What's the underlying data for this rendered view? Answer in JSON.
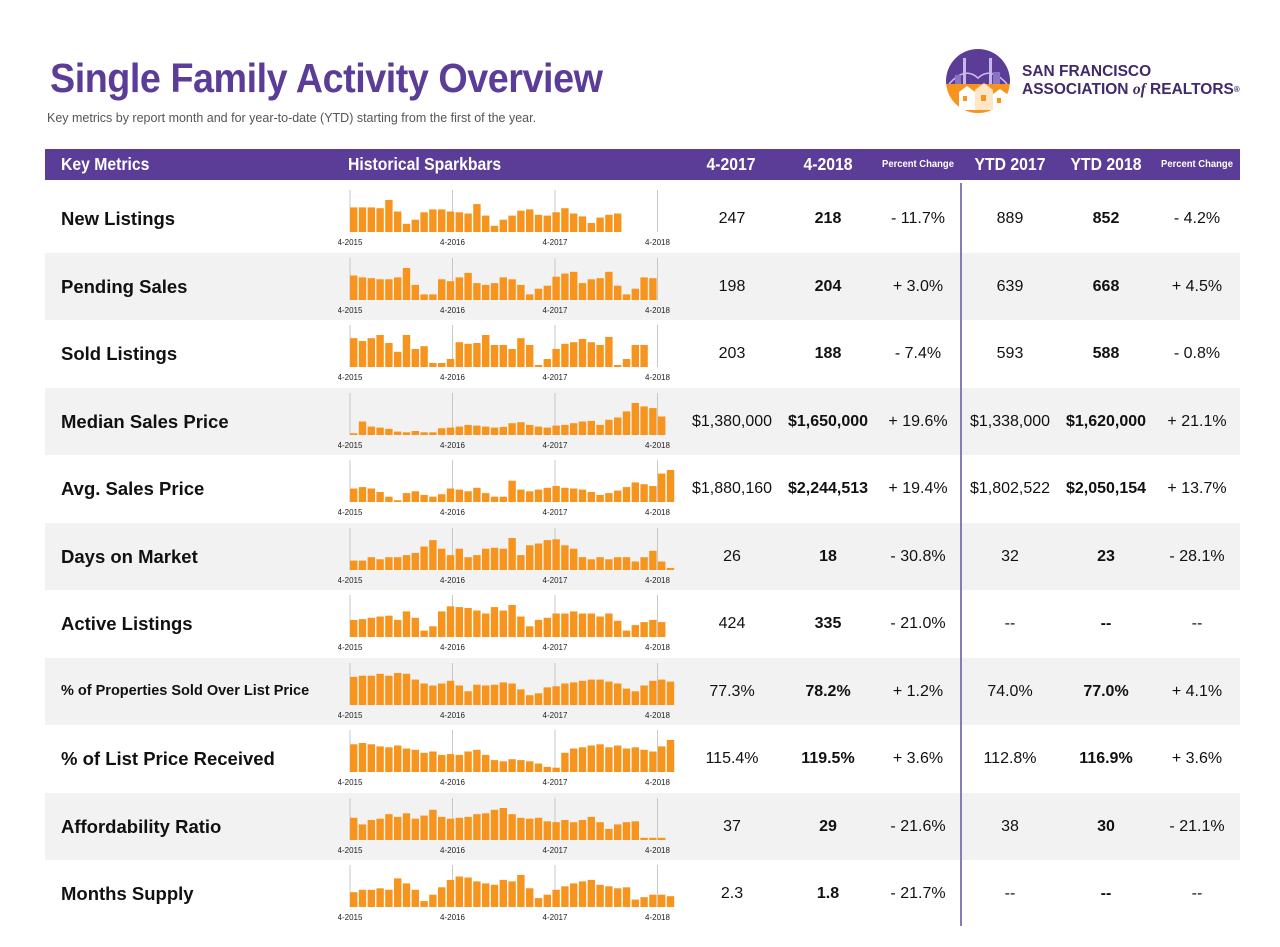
{
  "page": {
    "title": "Single Family Activity Overview",
    "subtitle": "Key metrics by report month and for year-to-date (YTD) starting from the first of the year."
  },
  "logo": {
    "line1": "SAN FRANCISCO",
    "line2_a": "ASSOCIATION ",
    "line2_of": "of",
    "line2_b": " REALTORS",
    "reg": "®"
  },
  "header": {
    "key_metrics": "Key Metrics",
    "sparkbars": "Historical Sparkbars",
    "month_prev": "4-2017",
    "month_curr": "4-2018",
    "pct_change": "Percent Change",
    "ytd_prev": "YTD 2017",
    "ytd_curr": "YTD 2018",
    "ytd_pct_change": "Percent Change"
  },
  "colors": {
    "accent": "#5b3d98",
    "bar": "#f7941d",
    "row_shade": "#f2f2f2",
    "divider": "#8b7ab8"
  },
  "axis_labels": [
    "4-2015",
    "4-2016",
    "4-2017",
    "4-2018"
  ],
  "metrics": [
    {
      "name": "New Listings",
      "prev": "247",
      "curr": "218",
      "pct": "- 11.7%",
      "ytd_prev": "889",
      "ytd_curr": "852",
      "ytd_pct": "- 4.2%",
      "bars": [
        60,
        60,
        60,
        58,
        78,
        50,
        20,
        30,
        48,
        55,
        55,
        50,
        48,
        45,
        68,
        40,
        15,
        30,
        40,
        52,
        55,
        42,
        40,
        48,
        58,
        45,
        38,
        22,
        35,
        42,
        45
      ]
    },
    {
      "name": "Pending Sales",
      "prev": "198",
      "curr": "204",
      "pct": "+ 3.0%",
      "ytd_prev": "639",
      "ytd_curr": "668",
      "ytd_pct": "+ 4.5%",
      "bars": [
        65,
        60,
        58,
        55,
        55,
        60,
        85,
        40,
        15,
        15,
        55,
        50,
        60,
        72,
        45,
        40,
        45,
        60,
        55,
        40,
        15,
        30,
        38,
        62,
        70,
        75,
        45,
        55,
        58,
        75,
        38,
        15,
        30,
        60,
        58
      ]
    },
    {
      "name": "Sold Listings",
      "prev": "203",
      "curr": "188",
      "pct": "- 7.4%",
      "ytd_prev": "593",
      "ytd_curr": "588",
      "ytd_pct": "- 0.8%",
      "bars": [
        72,
        65,
        72,
        80,
        60,
        38,
        80,
        45,
        52,
        10,
        10,
        20,
        62,
        58,
        60,
        80,
        55,
        55,
        45,
        72,
        55,
        5,
        20,
        45,
        58,
        62,
        70,
        62,
        55,
        75,
        5,
        20,
        55,
        55
      ]
    },
    {
      "name": "Median Sales Price",
      "prev": "$1,380,000",
      "curr": "$1,650,000",
      "pct": "+ 19.6%",
      "ytd_prev": "$1,338,000",
      "ytd_curr": "$1,620,000",
      "ytd_pct": "+ 21.1%",
      "bars": [
        5,
        40,
        25,
        22,
        18,
        10,
        8,
        12,
        8,
        8,
        20,
        22,
        25,
        30,
        28,
        25,
        22,
        24,
        35,
        38,
        30,
        25,
        22,
        28,
        30,
        35,
        40,
        42,
        30,
        45,
        52,
        70,
        95,
        85,
        80,
        55
      ]
    },
    {
      "name": "Avg. Sales Price",
      "prev": "$1,880,160",
      "curr": "$2,244,513",
      "pct": "+ 19.4%",
      "ytd_prev": "$1,802,522",
      "ytd_curr": "$2,050,154",
      "ytd_pct": "+ 13.7%",
      "bars": [
        38,
        42,
        38,
        28,
        15,
        5,
        25,
        30,
        20,
        15,
        22,
        38,
        35,
        30,
        40,
        25,
        15,
        15,
        60,
        35,
        30,
        35,
        40,
        45,
        40,
        38,
        35,
        28,
        20,
        25,
        32,
        42,
        55,
        50,
        45,
        80,
        90
      ]
    },
    {
      "name": "Days on Market",
      "prev": "26",
      "curr": "18",
      "pct": "- 30.8%",
      "ytd_prev": "32",
      "ytd_curr": "23",
      "ytd_pct": "- 28.1%",
      "bars": [
        22,
        22,
        30,
        25,
        30,
        30,
        35,
        40,
        55,
        70,
        50,
        35,
        50,
        30,
        35,
        50,
        52,
        50,
        75,
        35,
        58,
        62,
        70,
        72,
        58,
        50,
        30,
        25,
        30,
        25,
        30,
        30,
        20,
        30,
        45,
        20,
        5
      ]
    },
    {
      "name": "Active Listings",
      "prev": "424",
      "curr": "335",
      "pct": "- 21.0%",
      "ytd_prev": "--",
      "ytd_curr": "--",
      "ytd_pct": "--",
      "bars": [
        40,
        42,
        45,
        48,
        50,
        40,
        60,
        45,
        15,
        25,
        60,
        72,
        70,
        68,
        62,
        55,
        70,
        62,
        75,
        48,
        25,
        40,
        45,
        55,
        55,
        60,
        55,
        55,
        48,
        55,
        38,
        15,
        28,
        35,
        40,
        35
      ]
    },
    {
      "name": "% of Properties Sold Over List Price",
      "small": true,
      "prev": "77.3%",
      "curr": "78.2%",
      "pct": "+ 1.2%",
      "ytd_prev": "74.0%",
      "ytd_curr": "77.0%",
      "ytd_pct": "+ 4.1%",
      "bars": [
        72,
        75,
        75,
        80,
        75,
        82,
        80,
        65,
        55,
        50,
        55,
        62,
        50,
        35,
        52,
        50,
        52,
        58,
        55,
        40,
        25,
        30,
        45,
        48,
        55,
        58,
        62,
        65,
        65,
        60,
        55,
        42,
        35,
        50,
        62,
        65,
        60
      ]
    },
    {
      "name": "% of List Price Received",
      "prev": "115.4%",
      "curr": "119.5%",
      "pct": "+ 3.6%",
      "ytd_prev": "112.8%",
      "ytd_curr": "116.9%",
      "ytd_pct": "+ 3.6%",
      "bars": [
        65,
        68,
        65,
        60,
        58,
        62,
        55,
        52,
        45,
        48,
        40,
        42,
        40,
        48,
        52,
        40,
        28,
        25,
        30,
        28,
        25,
        20,
        12,
        10,
        45,
        55,
        58,
        62,
        65,
        58,
        62,
        55,
        58,
        52,
        48,
        60,
        75
      ]
    },
    {
      "name": "Affordability Ratio",
      "prev": "37",
      "curr": "29",
      "pct": "- 21.6%",
      "ytd_prev": "38",
      "ytd_curr": "30",
      "ytd_pct": "- 21.1%",
      "bars": [
        50,
        35,
        45,
        48,
        58,
        52,
        60,
        48,
        55,
        68,
        52,
        48,
        50,
        52,
        58,
        60,
        68,
        72,
        58,
        50,
        48,
        50,
        42,
        40,
        45,
        40,
        45,
        52,
        40,
        25,
        35,
        40,
        42,
        5,
        5,
        5
      ]
    },
    {
      "name": "Months Supply",
      "prev": "2.3",
      "curr": "1.8",
      "pct": "- 21.7%",
      "ytd_prev": "--",
      "ytd_curr": "--",
      "ytd_pct": "--",
      "bars": [
        30,
        35,
        35,
        38,
        35,
        58,
        48,
        35,
        12,
        25,
        40,
        55,
        62,
        60,
        52,
        48,
        45,
        55,
        52,
        65,
        38,
        18,
        25,
        35,
        42,
        48,
        52,
        55,
        45,
        42,
        38,
        40,
        15,
        20,
        25,
        25,
        22
      ]
    }
  ]
}
